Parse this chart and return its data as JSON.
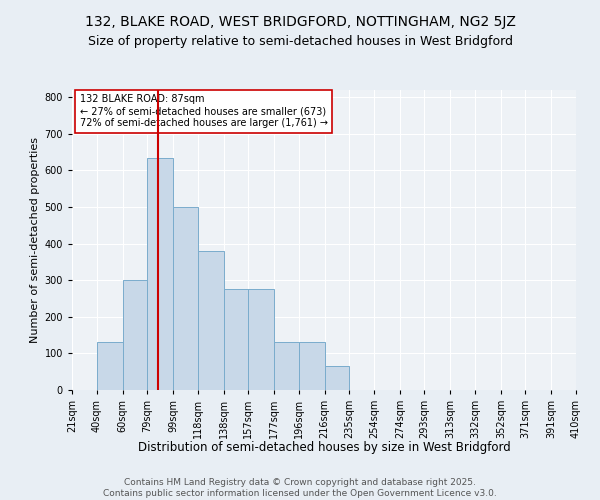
{
  "title": "132, BLAKE ROAD, WEST BRIDGFORD, NOTTINGHAM, NG2 5JZ",
  "subtitle": "Size of property relative to semi-detached houses in West Bridgford",
  "xlabel": "Distribution of semi-detached houses by size in West Bridgford",
  "ylabel": "Number of semi-detached properties",
  "bar_values": [
    0,
    130,
    300,
    635,
    500,
    380,
    275,
    275,
    130,
    130,
    65,
    0,
    0,
    0,
    0,
    0,
    0,
    0,
    0,
    0
  ],
  "bin_edges": [
    21,
    40,
    60,
    79,
    99,
    118,
    138,
    157,
    177,
    196,
    216,
    235,
    254,
    274,
    293,
    313,
    332,
    352,
    371,
    391,
    410
  ],
  "bin_labels": [
    "21sqm",
    "40sqm",
    "60sqm",
    "79sqm",
    "99sqm",
    "118sqm",
    "138sqm",
    "157sqm",
    "177sqm",
    "196sqm",
    "216sqm",
    "235sqm",
    "254sqm",
    "274sqm",
    "293sqm",
    "313sqm",
    "332sqm",
    "352sqm",
    "371sqm",
    "391sqm",
    "410sqm"
  ],
  "bar_color": "#c8d8e8",
  "bar_edge_color": "#7aaccc",
  "vline_x": 87,
  "vline_color": "#cc0000",
  "annotation_title": "132 BLAKE ROAD: 87sqm",
  "annotation_line1": "← 27% of semi-detached houses are smaller (673)",
  "annotation_line2": "72% of semi-detached houses are larger (1,761) →",
  "annotation_box_color": "#ffffff",
  "annotation_box_edge": "#cc0000",
  "ylim": [
    0,
    820
  ],
  "yticks": [
    0,
    100,
    200,
    300,
    400,
    500,
    600,
    700,
    800
  ],
  "background_color": "#e8eef4",
  "plot_bg_color": "#eef2f6",
  "footer": "Contains HM Land Registry data © Crown copyright and database right 2025.\nContains public sector information licensed under the Open Government Licence v3.0.",
  "title_fontsize": 10,
  "subtitle_fontsize": 9,
  "xlabel_fontsize": 8.5,
  "ylabel_fontsize": 8,
  "tick_fontsize": 7,
  "footer_fontsize": 6.5,
  "annotation_fontsize": 7
}
